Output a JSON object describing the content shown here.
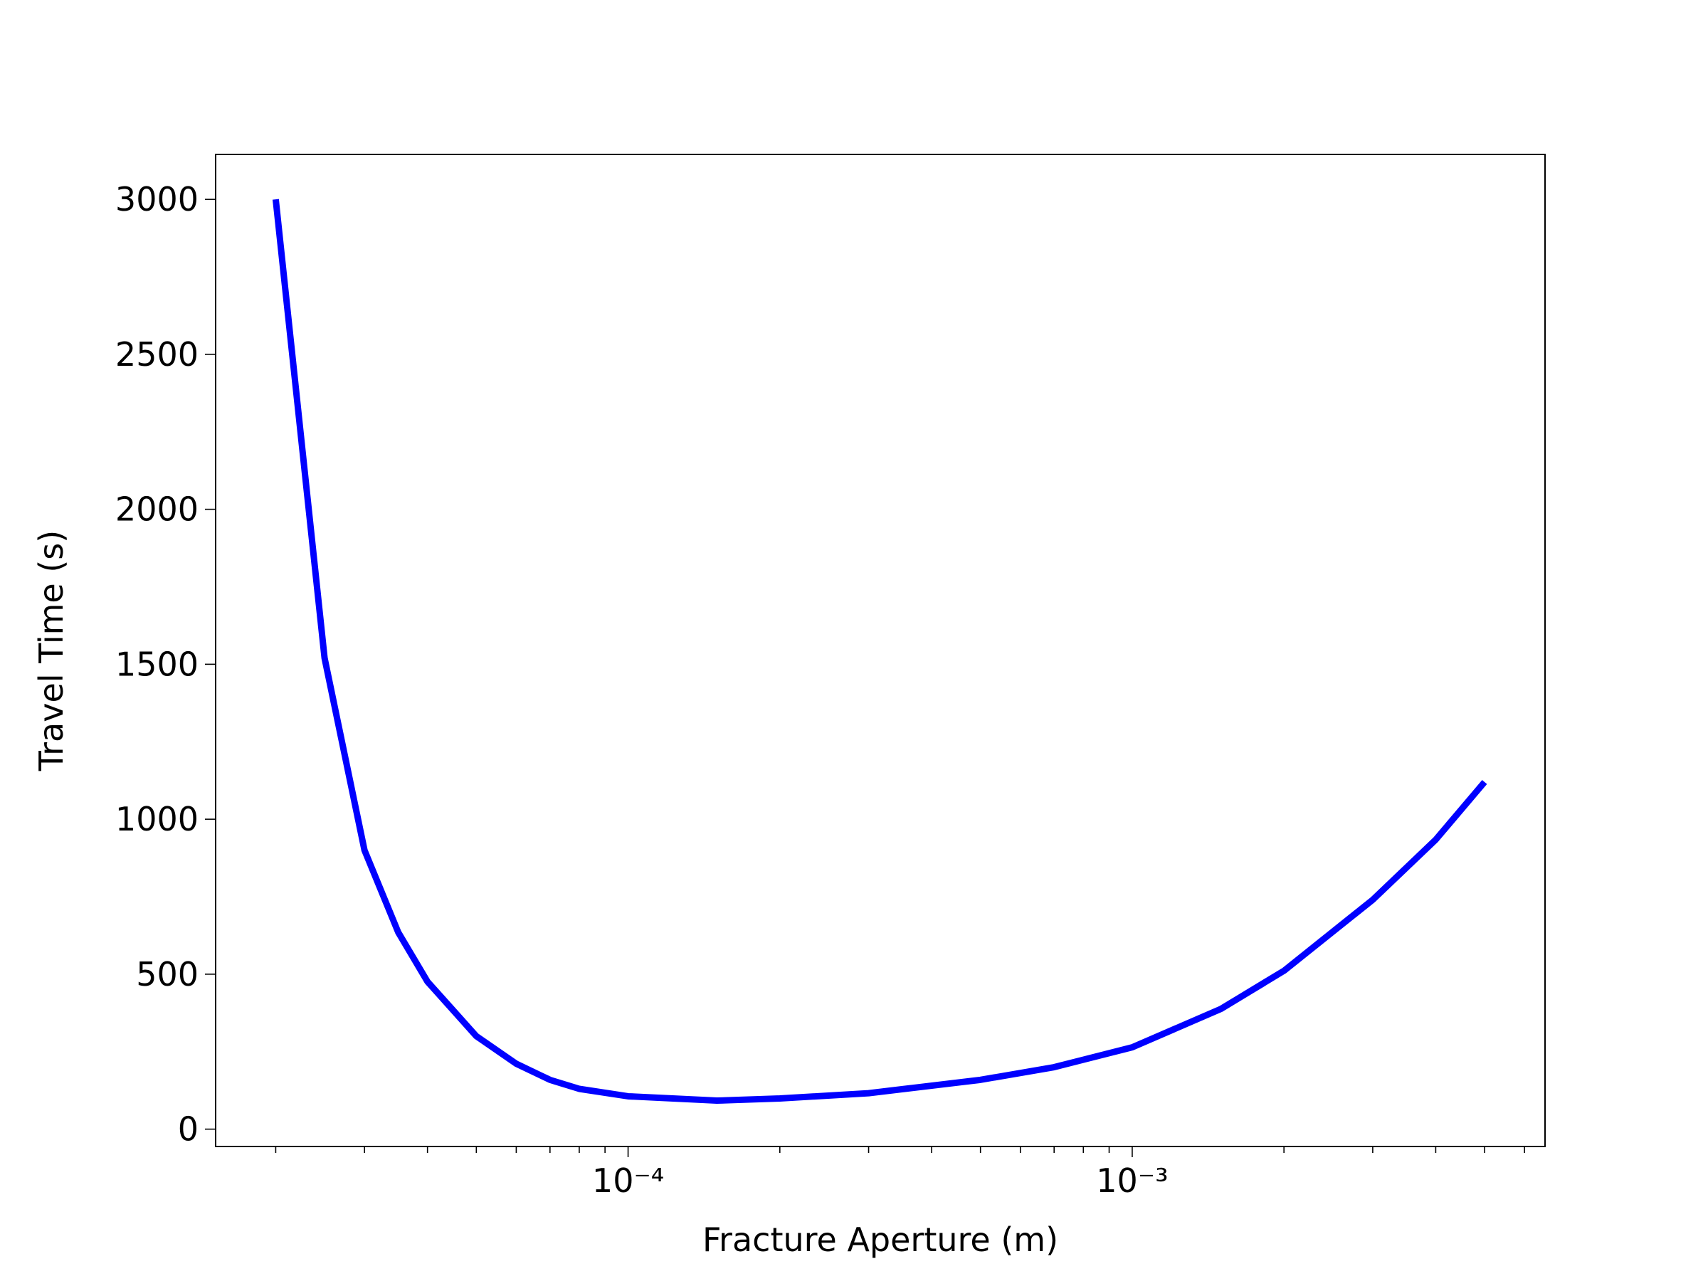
{
  "chart_data": {
    "type": "line",
    "xlabel": "Fracture Aperture (m)",
    "ylabel": "Travel Time (s)",
    "x": [
      2e-05,
      2.5e-05,
      3e-05,
      3.5e-05,
      4e-05,
      5e-05,
      6e-05,
      7e-05,
      8e-05,
      0.0001,
      0.00015,
      0.0002,
      0.0003,
      0.0005,
      0.0007,
      0.001,
      0.0015,
      0.002,
      0.003,
      0.004,
      0.005
    ],
    "values": [
      3000,
      1520,
      900,
      635,
      476,
      300,
      211,
      159,
      130,
      106,
      92,
      99,
      116,
      159,
      200,
      264,
      388,
      511,
      740,
      934,
      1120
    ],
    "color": "#0000ff",
    "xscale": "log",
    "xlim": [
      1.52e-05,
      0.00659
    ],
    "xticks": [
      {
        "value": 0.0001,
        "label": "10⁻⁴"
      },
      {
        "value": 0.001,
        "label": "10⁻³"
      }
    ],
    "xminorticks": [
      2e-05,
      3e-05,
      4e-05,
      5e-05,
      6e-05,
      7e-05,
      8e-05,
      9e-05,
      0.0002,
      0.0003,
      0.0004,
      0.0005,
      0.0006,
      0.0007,
      0.0008,
      0.0009,
      0.002,
      0.003,
      0.004,
      0.005,
      0.006
    ],
    "ylim": [
      -56,
      3145
    ],
    "yticks": [
      0,
      500,
      1000,
      1500,
      2000,
      2500,
      3000
    ],
    "grid": false
  }
}
